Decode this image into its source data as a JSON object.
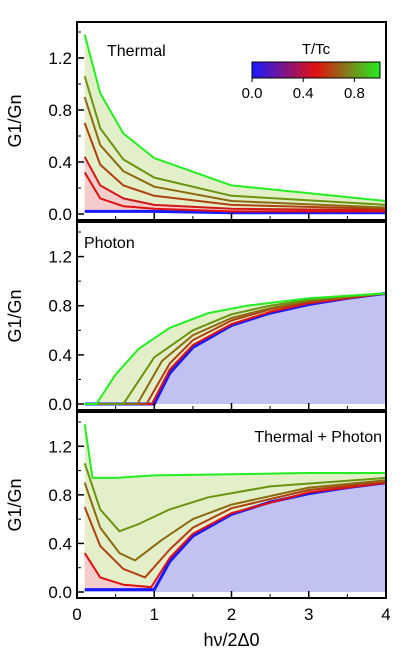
{
  "chart_data": [
    {
      "type": "line",
      "panel_label": "Thermal",
      "ylabel": "G1/Gn",
      "xlim": [
        0,
        4
      ],
      "ylim": [
        0,
        1.4
      ],
      "yticks": [
        "0.0",
        "0.4",
        "0.8",
        "1.2"
      ],
      "x_start": [
        0.1,
        0.1,
        0.1,
        0.1,
        0.1,
        0.1,
        0.1
      ],
      "series": [
        {
          "color": "#1a1aff",
          "values": [
            [
              0.1,
              0.02
            ],
            [
              1,
              0.02
            ],
            [
              2,
              0.01
            ],
            [
              4,
              0.01
            ]
          ]
        },
        {
          "color": "#e01010",
          "values": [
            [
              0.1,
              0.32
            ],
            [
              0.3,
              0.12
            ],
            [
              0.6,
              0.06
            ],
            [
              1,
              0.04
            ],
            [
              2,
              0.02
            ],
            [
              4,
              0.02
            ]
          ]
        },
        {
          "color": "#d01818",
          "values": [
            [
              0.1,
              0.44
            ],
            [
              0.3,
              0.22
            ],
            [
              0.6,
              0.12
            ],
            [
              1,
              0.07
            ],
            [
              2,
              0.04
            ],
            [
              4,
              0.03
            ]
          ]
        },
        {
          "color": "#b04010",
          "values": [
            [
              0.1,
              0.7
            ],
            [
              0.3,
              0.38
            ],
            [
              0.6,
              0.22
            ],
            [
              1,
              0.14
            ],
            [
              2,
              0.07
            ],
            [
              4,
              0.04
            ]
          ]
        },
        {
          "color": "#8c6a10",
          "values": [
            [
              0.1,
              0.9
            ],
            [
              0.3,
              0.53
            ],
            [
              0.6,
              0.33
            ],
            [
              1,
              0.21
            ],
            [
              2,
              0.1
            ],
            [
              4,
              0.05
            ]
          ]
        },
        {
          "color": "#6a9410",
          "values": [
            [
              0.1,
              1.06
            ],
            [
              0.3,
              0.66
            ],
            [
              0.6,
              0.42
            ],
            [
              1,
              0.28
            ],
            [
              2,
              0.14
            ],
            [
              4,
              0.07
            ]
          ]
        },
        {
          "color": "#22ee22",
          "values": [
            [
              0.1,
              1.38
            ],
            [
              0.3,
              0.93
            ],
            [
              0.6,
              0.62
            ],
            [
              1,
              0.43
            ],
            [
              2,
              0.22
            ],
            [
              4,
              0.1
            ]
          ]
        }
      ],
      "colorbar": {
        "title": "T/Tc",
        "ticks": [
          "0.0",
          "0.4",
          "0.8"
        ],
        "tick_values": [
          0,
          0.4,
          0.8
        ],
        "range": [
          0,
          1
        ],
        "colors": [
          "#1a1aff",
          "#e01010",
          "#22ee22"
        ]
      }
    },
    {
      "type": "line",
      "panel_label": "Photon",
      "ylabel": "G1/Gn",
      "xlim": [
        0,
        4
      ],
      "ylim": [
        0,
        1.4
      ],
      "yticks": [
        "0.0",
        "0.4",
        "0.8",
        "1.2"
      ],
      "series": [
        {
          "color": "#1a1aff",
          "values": [
            [
              0.1,
              0
            ],
            [
              1.0,
              0
            ],
            [
              1.2,
              0.25
            ],
            [
              1.5,
              0.46
            ],
            [
              2,
              0.64
            ],
            [
              2.5,
              0.74
            ],
            [
              3,
              0.81
            ],
            [
              3.5,
              0.86
            ],
            [
              4,
              0.9
            ]
          ]
        },
        {
          "color": "#e01010",
          "values": [
            [
              0.1,
              0
            ],
            [
              0.97,
              0
            ],
            [
              1.2,
              0.28
            ],
            [
              1.5,
              0.48
            ],
            [
              2,
              0.65
            ],
            [
              2.5,
              0.75
            ],
            [
              3,
              0.82
            ],
            [
              3.5,
              0.86
            ],
            [
              4,
              0.9
            ]
          ]
        },
        {
          "color": "#b04010",
          "values": [
            [
              0.1,
              0
            ],
            [
              0.9,
              0
            ],
            [
              1.2,
              0.33
            ],
            [
              1.5,
              0.52
            ],
            [
              2,
              0.68
            ],
            [
              2.5,
              0.77
            ],
            [
              3,
              0.83
            ],
            [
              3.5,
              0.87
            ],
            [
              4,
              0.9
            ]
          ]
        },
        {
          "color": "#8c6a10",
          "values": [
            [
              0.1,
              0
            ],
            [
              0.78,
              0
            ],
            [
              1.1,
              0.35
            ],
            [
              1.5,
              0.56
            ],
            [
              2,
              0.7
            ],
            [
              2.5,
              0.78
            ],
            [
              3,
              0.84
            ],
            [
              3.5,
              0.87
            ],
            [
              4,
              0.9
            ]
          ]
        },
        {
          "color": "#6a9410",
          "values": [
            [
              0.1,
              0
            ],
            [
              0.6,
              0
            ],
            [
              1.0,
              0.38
            ],
            [
              1.5,
              0.6
            ],
            [
              2,
              0.73
            ],
            [
              2.5,
              0.8
            ],
            [
              3,
              0.85
            ],
            [
              3.5,
              0.88
            ],
            [
              4,
              0.9
            ]
          ]
        },
        {
          "color": "#22ee22",
          "values": [
            [
              0.1,
              0
            ],
            [
              0.25,
              0
            ],
            [
              0.5,
              0.24
            ],
            [
              0.8,
              0.45
            ],
            [
              1.2,
              0.62
            ],
            [
              1.7,
              0.74
            ],
            [
              2.2,
              0.8
            ],
            [
              3,
              0.86
            ],
            [
              4,
              0.9
            ]
          ]
        }
      ]
    },
    {
      "type": "line",
      "panel_label": "Thermal + Photon",
      "ylabel": "G1/Gn",
      "xlabel": "hν/2Δ0",
      "xlim": [
        0,
        4
      ],
      "ylim": [
        0,
        1.4
      ],
      "xticks": [
        "0",
        "1",
        "2",
        "3",
        "4"
      ],
      "yticks": [
        "0.0",
        "0.4",
        "0.8",
        "1.2"
      ],
      "series": [
        {
          "color": "#1a1aff",
          "values": [
            [
              0.1,
              0.02
            ],
            [
              1.0,
              0.02
            ],
            [
              1.2,
              0.25
            ],
            [
              1.5,
              0.46
            ],
            [
              2,
              0.64
            ],
            [
              2.5,
              0.74
            ],
            [
              3,
              0.81
            ],
            [
              3.5,
              0.86
            ],
            [
              4,
              0.9
            ]
          ]
        },
        {
          "color": "#e01010",
          "values": [
            [
              0.1,
              0.32
            ],
            [
              0.3,
              0.12
            ],
            [
              0.6,
              0.06
            ],
            [
              0.96,
              0.04
            ],
            [
              1.2,
              0.28
            ],
            [
              1.5,
              0.48
            ],
            [
              2,
              0.65
            ],
            [
              3,
              0.82
            ],
            [
              4,
              0.9
            ]
          ]
        },
        {
          "color": "#b04010",
          "values": [
            [
              0.1,
              0.7
            ],
            [
              0.3,
              0.38
            ],
            [
              0.6,
              0.19
            ],
            [
              0.88,
              0.12
            ],
            [
              1.2,
              0.35
            ],
            [
              1.5,
              0.53
            ],
            [
              2,
              0.69
            ],
            [
              3,
              0.84
            ],
            [
              4,
              0.91
            ]
          ]
        },
        {
          "color": "#8c6a10",
          "values": [
            [
              0.1,
              0.9
            ],
            [
              0.3,
              0.53
            ],
            [
              0.55,
              0.32
            ],
            [
              0.75,
              0.26
            ],
            [
              1.1,
              0.43
            ],
            [
              1.5,
              0.6
            ],
            [
              2,
              0.72
            ],
            [
              3,
              0.86
            ],
            [
              4,
              0.92
            ]
          ]
        },
        {
          "color": "#6a9410",
          "values": [
            [
              0.1,
              1.06
            ],
            [
              0.3,
              0.68
            ],
            [
              0.55,
              0.5
            ],
            [
              0.8,
              0.56
            ],
            [
              1.2,
              0.68
            ],
            [
              1.7,
              0.78
            ],
            [
              2.5,
              0.87
            ],
            [
              4,
              0.94
            ]
          ]
        },
        {
          "color": "#22ee22",
          "values": [
            [
              0.1,
              1.38
            ],
            [
              0.2,
              0.94
            ],
            [
              0.5,
              0.94
            ],
            [
              1,
              0.96
            ],
            [
              2,
              0.97
            ],
            [
              3,
              0.98
            ],
            [
              4,
              0.98
            ]
          ]
        }
      ]
    }
  ]
}
